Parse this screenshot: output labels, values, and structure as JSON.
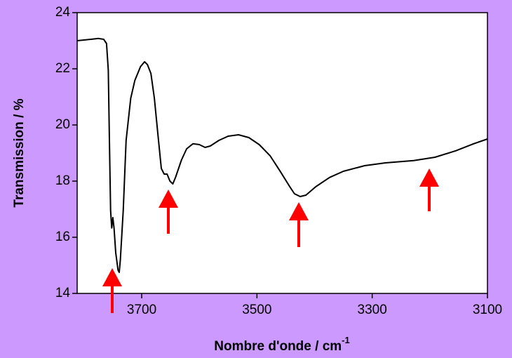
{
  "chart_data": {
    "type": "line",
    "y_label": "Transmission / %",
    "x_label": "Nombre d'onde / cm",
    "x_label_superscript": "-1",
    "x": [
      3812,
      3788,
      3775,
      3766,
      3761,
      3758,
      3756,
      3754,
      3752,
      3750,
      3748,
      3745,
      3741,
      3739,
      3737,
      3732,
      3727,
      3719,
      3712,
      3702,
      3695,
      3690,
      3684,
      3678,
      3672,
      3666,
      3661,
      3656,
      3651,
      3646,
      3641,
      3631,
      3622,
      3611,
      3600,
      3590,
      3581,
      3566,
      3550,
      3532,
      3514,
      3496,
      3477,
      3459,
      3444,
      3435,
      3425,
      3415,
      3398,
      3374,
      3350,
      3313,
      3277,
      3228,
      3191,
      3155,
      3124,
      3100
    ],
    "values": [
      23.0,
      23.05,
      23.08,
      23.05,
      22.9,
      21.95,
      19.45,
      16.95,
      16.33,
      16.7,
      16.33,
      15.45,
      14.83,
      14.75,
      15.2,
      16.95,
      19.45,
      20.95,
      21.58,
      22.08,
      22.25,
      22.15,
      21.83,
      20.95,
      19.7,
      18.45,
      18.25,
      18.25,
      18.0,
      17.9,
      18.15,
      18.75,
      19.15,
      19.33,
      19.3,
      19.2,
      19.25,
      19.45,
      19.6,
      19.65,
      19.55,
      19.3,
      18.9,
      18.33,
      17.83,
      17.55,
      17.45,
      17.5,
      17.8,
      18.13,
      18.35,
      18.55,
      18.65,
      18.73,
      18.85,
      19.08,
      19.33,
      19.5
    ],
    "color": "#000000",
    "xlim": [
      3812,
      3100
    ],
    "xticks": [
      3700,
      3500,
      3300,
      3100
    ],
    "ylim": [
      14,
      24
    ],
    "yticks": [
      14,
      16,
      18,
      20,
      22,
      24
    ]
  }
}
